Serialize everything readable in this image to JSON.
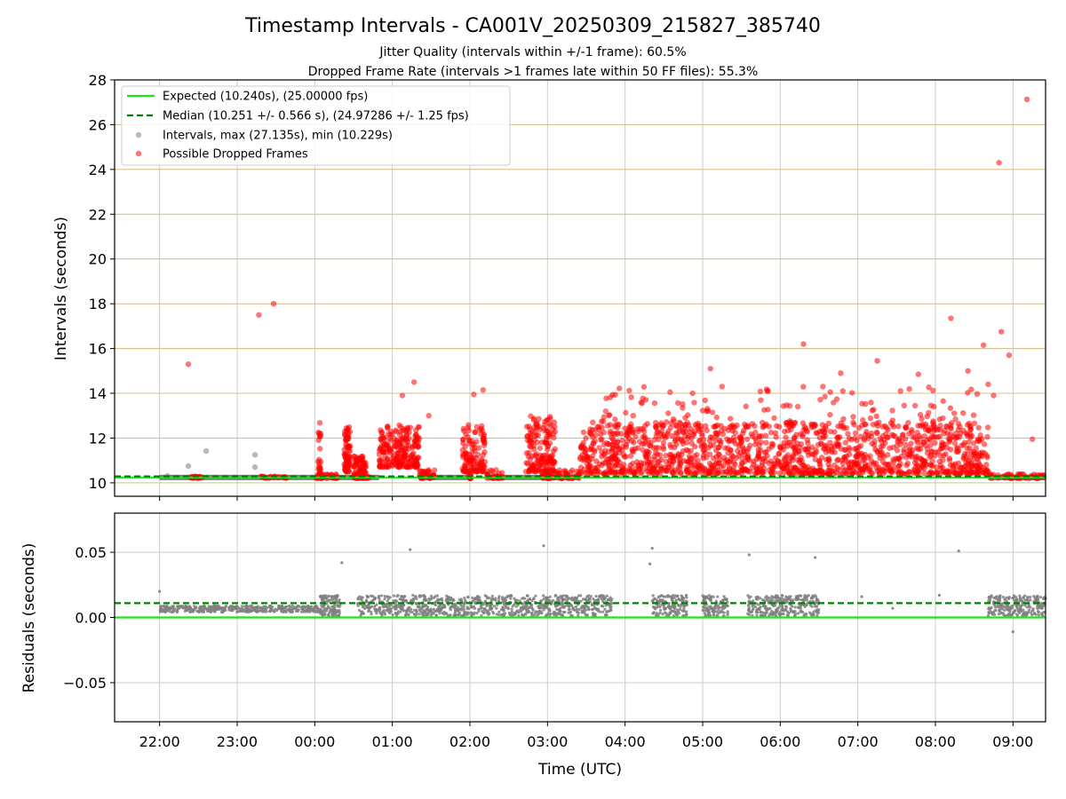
{
  "chart_data": {
    "type": "scatter",
    "title": "Timestamp Intervals - CA001V_20250309_215827_385740",
    "subtitle_lines": [
      "Jitter Quality (intervals within +/-1 frame): 60.5%",
      "Dropped Frame Rate (intervals >1 frames late within 50 FF files): 55.3%"
    ],
    "xlabel": "Time (UTC)",
    "x_ticks": [
      "22:00",
      "23:00",
      "00:00",
      "01:00",
      "02:00",
      "03:00",
      "04:00",
      "05:00",
      "06:00",
      "07:00",
      "08:00",
      "09:00"
    ],
    "xlim_hours": [
      -0.58,
      11.42
    ],
    "grid": true,
    "legend_position": "upper-left",
    "colors": {
      "expected": "#22e022",
      "median": "#008000",
      "intervals": "#808080",
      "dropped": "#ff0000",
      "top_grid": "#d8c08a",
      "bottom_grid": "#cccccc"
    },
    "top": {
      "ylabel": "Intervals (seconds)",
      "ylim": [
        9.4,
        28.0
      ],
      "yticks": [
        "10",
        "12",
        "14",
        "16",
        "18",
        "20",
        "22",
        "24",
        "26",
        "28"
      ],
      "expected": 10.24,
      "median": 10.251,
      "legend": [
        "Expected (10.240s), (25.00000 fps)",
        "Median (10.251 +/- 0.566 s), (24.97286 +/- 1.25 fps)",
        "Intervals, max (27.135s), min (10.229s)",
        "Possible Dropped Frames"
      ],
      "baseline_runs": [
        [
          0.0,
          2.83
        ],
        [
          3.35,
          3.96
        ],
        [
          4.25,
          5.42
        ],
        [
          10.68,
          11.42
        ]
      ],
      "gray_outliers": [
        [
          0.1,
          10.31
        ],
        [
          0.6,
          11.42
        ],
        [
          1.23,
          11.25
        ],
        [
          1.23,
          10.7
        ],
        [
          0.37,
          10.75
        ]
      ],
      "red_points": [
        [
          0.37,
          15.3
        ],
        [
          1.28,
          17.5
        ],
        [
          1.47,
          18.0
        ],
        [
          4.95,
          12.45
        ],
        [
          3.13,
          13.9
        ],
        [
          3.28,
          14.5
        ],
        [
          3.47,
          13.0
        ],
        [
          4.17,
          14.15
        ],
        [
          4.05,
          13.95
        ],
        [
          5.75,
          13.2
        ],
        [
          5.87,
          12.5
        ],
        [
          6.58,
          14.05
        ],
        [
          6.87,
          14.0
        ],
        [
          7.1,
          15.1
        ],
        [
          7.25,
          14.3
        ],
        [
          8.3,
          16.2
        ],
        [
          8.55,
          14.3
        ],
        [
          8.78,
          14.9
        ],
        [
          9.25,
          15.45
        ],
        [
          9.55,
          14.1
        ],
        [
          9.78,
          14.85
        ],
        [
          10.2,
          17.35
        ],
        [
          10.42,
          15.0
        ],
        [
          10.62,
          16.15
        ],
        [
          10.85,
          16.75
        ],
        [
          10.95,
          15.7
        ],
        [
          10.82,
          24.3
        ],
        [
          11.18,
          27.13
        ],
        [
          11.25,
          11.95
        ],
        [
          10.68,
          14.4
        ],
        [
          10.75,
          13.9
        ]
      ],
      "dense_clusters": [
        {
          "x": [
            2.04,
            2.08
          ],
          "y": [
            10.2,
            12.7
          ],
          "n": 25
        },
        {
          "x": [
            2.38,
            2.46
          ],
          "y": [
            10.5,
            12.5
          ],
          "n": 80
        },
        {
          "x": [
            2.5,
            2.66
          ],
          "y": [
            10.2,
            11.2
          ],
          "n": 90
        },
        {
          "x": [
            2.0,
            2.3
          ],
          "y": [
            10.2,
            10.4
          ],
          "n": 40
        },
        {
          "x": [
            3.98,
            4.02
          ],
          "y": [
            10.2,
            11.3
          ],
          "n": 20
        },
        {
          "x": [
            4.92,
            5.06
          ],
          "y": [
            10.2,
            10.4
          ],
          "n": 30
        },
        {
          "x": [
            2.83,
            3.35
          ],
          "y": [
            10.7,
            12.6
          ],
          "n": 220
        },
        {
          "x": [
            3.35,
            3.55
          ],
          "y": [
            10.2,
            10.6
          ],
          "n": 40
        },
        {
          "x": [
            3.9,
            4.2
          ],
          "y": [
            10.5,
            12.6
          ],
          "n": 110
        },
        {
          "x": [
            4.2,
            4.42
          ],
          "y": [
            10.2,
            10.6
          ],
          "n": 30
        },
        {
          "x": [
            4.72,
            5.1
          ],
          "y": [
            10.5,
            13.0
          ],
          "n": 160
        },
        {
          "x": [
            5.05,
            5.42
          ],
          "y": [
            10.2,
            10.6
          ],
          "n": 40
        },
        {
          "x": [
            5.42,
            10.68
          ],
          "y": [
            10.4,
            12.7
          ],
          "n": 1400
        },
        {
          "x": [
            5.55,
            10.6
          ],
          "y": [
            12.5,
            14.3
          ],
          "n": 130
        },
        {
          "x": [
            10.68,
            11.42
          ],
          "y": [
            10.2,
            10.4
          ],
          "n": 60
        }
      ]
    },
    "bottom": {
      "ylabel": "Residuals (seconds)",
      "ylim": [
        -0.08,
        0.08
      ],
      "yticks": [
        "−0.05",
        "0.00",
        "0.05"
      ],
      "expected": 0.0,
      "median": 0.011,
      "bands": [
        {
          "x": [
            0.0,
            2.07
          ],
          "y": [
            0.004,
            0.009
          ],
          "n": 400
        },
        {
          "x": [
            2.07,
            2.33
          ],
          "y": [
            0.001,
            0.017
          ],
          "n": 120
        },
        {
          "x": [
            2.55,
            4.95
          ],
          "y": [
            0.001,
            0.017
          ],
          "n": 650
        },
        {
          "x": [
            4.95,
            5.83
          ],
          "y": [
            0.001,
            0.017
          ],
          "n": 250
        },
        {
          "x": [
            6.35,
            6.8
          ],
          "y": [
            0.001,
            0.017
          ],
          "n": 150
        },
        {
          "x": [
            7.0,
            7.33
          ],
          "y": [
            0.001,
            0.017
          ],
          "n": 110
        },
        {
          "x": [
            7.58,
            8.5
          ],
          "y": [
            0.001,
            0.017
          ],
          "n": 280
        },
        {
          "x": [
            10.68,
            11.42
          ],
          "y": [
            0.001,
            0.017
          ],
          "n": 240
        }
      ],
      "points": [
        [
          0.0,
          0.02
        ],
        [
          2.35,
          0.042
        ],
        [
          3.23,
          0.052
        ],
        [
          4.95,
          0.055
        ],
        [
          6.35,
          0.053
        ],
        [
          6.32,
          0.041
        ],
        [
          7.6,
          0.048
        ],
        [
          8.45,
          0.046
        ],
        [
          9.05,
          0.016
        ],
        [
          9.45,
          0.007
        ],
        [
          10.05,
          0.017
        ],
        [
          10.75,
          0.012
        ],
        [
          11.0,
          -0.011
        ],
        [
          10.3,
          0.051
        ]
      ]
    }
  }
}
